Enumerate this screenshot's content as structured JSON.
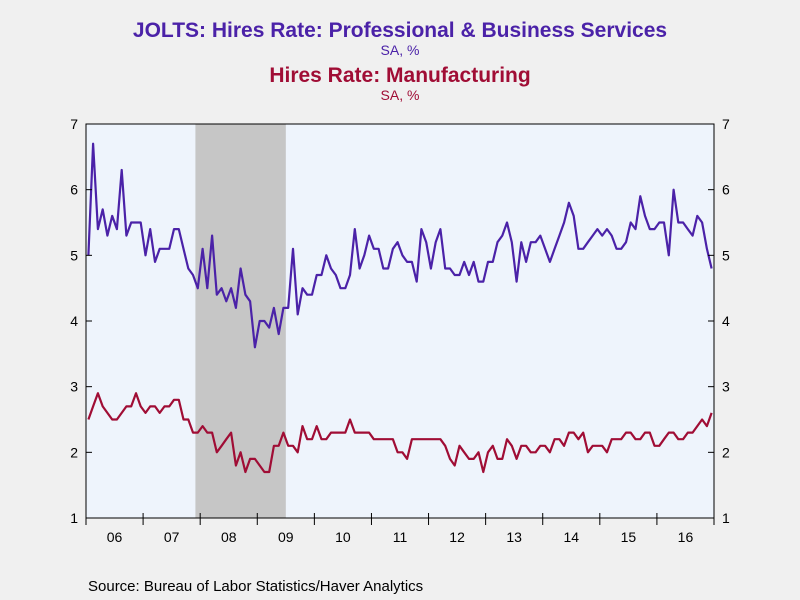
{
  "titles": {
    "series1_title": "JOLTS: Hires Rate: Professional & Business Services",
    "series1_unit": "SA, %",
    "series2_title": "Hires Rate: Manufacturing",
    "series2_unit": "SA, %"
  },
  "source": "Source:  Bureau of Labor Statistics/Haver Analytics",
  "colors": {
    "series1": "#4b22a8",
    "series2": "#a00d35",
    "background": "#f0f0f0",
    "plot_area": "#eef4fc",
    "recession": "#c6c6c6"
  },
  "chart_data": {
    "type": "line",
    "x_start": "2006-01",
    "frequency": "monthly",
    "xlim": [
      "2006-01",
      "2016-12"
    ],
    "ylim": [
      1,
      7
    ],
    "y_ticks": [
      1,
      2,
      3,
      4,
      5,
      6,
      7
    ],
    "x_tick_labels": [
      "06",
      "07",
      "08",
      "09",
      "10",
      "11",
      "12",
      "13",
      "14",
      "15",
      "16"
    ],
    "shaded_regions": [
      {
        "label": "recession",
        "start": "2007-12",
        "end": "2009-06"
      }
    ],
    "grid": false,
    "legend": "none",
    "series": [
      {
        "name": "JOLTS: Hires Rate: Professional & Business Services",
        "values": [
          5.0,
          6.7,
          5.4,
          5.7,
          5.3,
          5.6,
          5.4,
          6.3,
          5.3,
          5.5,
          5.5,
          5.5,
          5.0,
          5.4,
          4.9,
          5.1,
          5.1,
          5.1,
          5.4,
          5.4,
          5.1,
          4.8,
          4.7,
          4.5,
          5.1,
          4.5,
          5.3,
          4.4,
          4.5,
          4.3,
          4.5,
          4.2,
          4.8,
          4.4,
          4.3,
          3.6,
          4.0,
          4.0,
          3.9,
          4.2,
          3.8,
          4.2,
          4.2,
          5.1,
          4.1,
          4.5,
          4.4,
          4.4,
          4.7,
          4.7,
          5.0,
          4.8,
          4.7,
          4.5,
          4.5,
          4.7,
          5.4,
          4.8,
          5.0,
          5.3,
          5.1,
          5.1,
          4.8,
          4.8,
          5.1,
          5.2,
          5.0,
          4.9,
          4.9,
          4.6,
          5.4,
          5.2,
          4.8,
          5.2,
          5.4,
          4.8,
          4.8,
          4.7,
          4.7,
          4.9,
          4.7,
          4.9,
          4.6,
          4.6,
          4.9,
          4.9,
          5.2,
          5.3,
          5.5,
          5.2,
          4.6,
          5.2,
          4.9,
          5.2,
          5.2,
          5.3,
          5.1,
          4.9,
          5.1,
          5.3,
          5.5,
          5.8,
          5.6,
          5.1,
          5.1,
          5.2,
          5.3,
          5.4,
          5.3,
          5.4,
          5.3,
          5.1,
          5.1,
          5.2,
          5.5,
          5.4,
          5.9,
          5.6,
          5.4,
          5.4,
          5.5,
          5.5,
          5.0,
          6.0,
          5.5,
          5.5,
          5.4,
          5.3,
          5.6,
          5.5,
          5.1,
          4.8
        ]
      },
      {
        "name": "Hires Rate: Manufacturing",
        "values": [
          2.5,
          2.7,
          2.9,
          2.7,
          2.6,
          2.5,
          2.5,
          2.6,
          2.7,
          2.7,
          2.9,
          2.7,
          2.6,
          2.7,
          2.7,
          2.6,
          2.7,
          2.7,
          2.8,
          2.8,
          2.5,
          2.5,
          2.3,
          2.3,
          2.4,
          2.3,
          2.3,
          2.0,
          2.1,
          2.2,
          2.3,
          1.8,
          2.0,
          1.7,
          1.9,
          1.9,
          1.8,
          1.7,
          1.7,
          2.1,
          2.1,
          2.3,
          2.1,
          2.1,
          2.0,
          2.4,
          2.2,
          2.2,
          2.4,
          2.2,
          2.2,
          2.3,
          2.3,
          2.3,
          2.3,
          2.5,
          2.3,
          2.3,
          2.3,
          2.3,
          2.2,
          2.2,
          2.2,
          2.2,
          2.2,
          2.0,
          2.0,
          1.9,
          2.2,
          2.2,
          2.2,
          2.2,
          2.2,
          2.2,
          2.2,
          2.1,
          1.9,
          1.8,
          2.1,
          2.0,
          1.9,
          1.9,
          2.0,
          1.7,
          2.0,
          2.1,
          1.9,
          1.9,
          2.2,
          2.1,
          1.9,
          2.1,
          2.1,
          2.0,
          2.0,
          2.1,
          2.1,
          2.0,
          2.2,
          2.2,
          2.1,
          2.3,
          2.3,
          2.2,
          2.3,
          2.0,
          2.1,
          2.1,
          2.1,
          2.0,
          2.2,
          2.2,
          2.2,
          2.3,
          2.3,
          2.2,
          2.2,
          2.3,
          2.3,
          2.1,
          2.1,
          2.2,
          2.3,
          2.3,
          2.2,
          2.2,
          2.3,
          2.3,
          2.4,
          2.5,
          2.4,
          2.6
        ]
      }
    ]
  }
}
